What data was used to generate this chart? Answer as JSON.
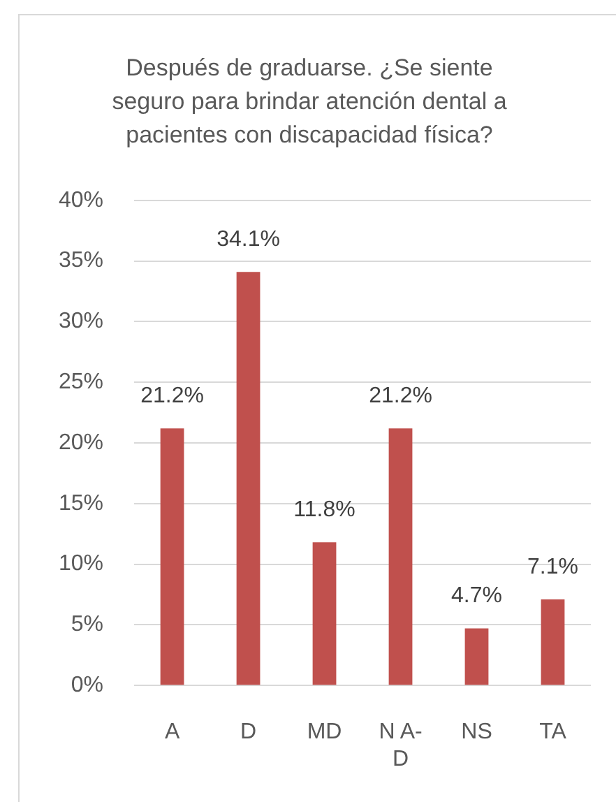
{
  "chart_data": {
    "type": "bar",
    "title": "Después de graduarse. ¿Se siente seguro para brindar atención dental a pacientes con discapacidad física?",
    "categories": [
      "A",
      "D",
      "MD",
      "N A-D",
      "NS",
      "TA"
    ],
    "values": [
      21.2,
      34.1,
      11.8,
      21.2,
      4.7,
      7.1
    ],
    "value_labels": [
      "21.2%",
      "34.1%",
      "11.8%",
      "21.2%",
      "4.7%",
      "7.1%"
    ],
    "color": "#c0504d",
    "ylim": [
      0,
      40
    ],
    "yticks": [
      {
        "value": 0,
        "label": "0%"
      },
      {
        "value": 5,
        "label": "5%"
      },
      {
        "value": 10,
        "label": "10%"
      },
      {
        "value": 15,
        "label": "15%"
      },
      {
        "value": 20,
        "label": "20%"
      },
      {
        "value": 25,
        "label": "25%"
      },
      {
        "value": 30,
        "label": "30%"
      },
      {
        "value": 35,
        "label": "35%"
      },
      {
        "value": 40,
        "label": "40%"
      }
    ],
    "grid": true
  }
}
